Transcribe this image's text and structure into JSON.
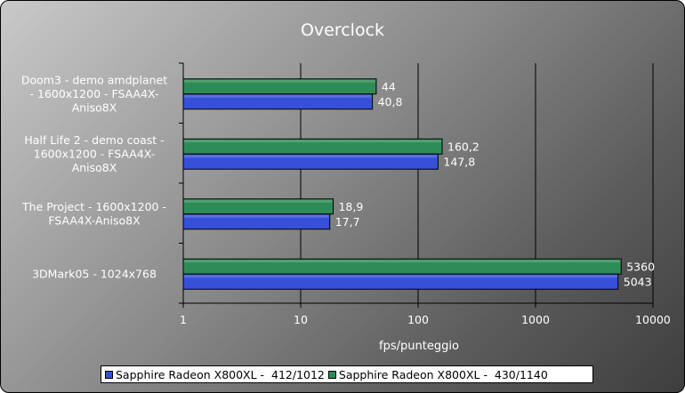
{
  "chart_data": {
    "type": "bar",
    "orientation": "horizontal",
    "title": "Overclock",
    "xlabel": "fps/punteggio",
    "ylabel": "",
    "xscale": "log",
    "xlim": [
      1,
      10000
    ],
    "xticks": [
      "1",
      "10",
      "100",
      "1000",
      "10000"
    ],
    "grid": "vertical",
    "legend_position": "bottom",
    "categories": [
      [
        "Doom3 - demo amdplanet",
        "- 1600x1200 - FSAA4X-",
        "Aniso8X"
      ],
      [
        "Half Life 2 - demo coast -",
        "1600x1200 - FSAA4X-",
        "Aniso8X"
      ],
      [
        "The Project - 1600x1200 -",
        "FSAA4X-Aniso8X"
      ],
      [
        "3DMark05 - 1024x768"
      ]
    ],
    "series": [
      {
        "name": "Sapphire Radeon X800XL -  430/1140",
        "color": "#2e8b57",
        "values": [
          44,
          160.2,
          18.9,
          5360
        ],
        "labels": [
          "44",
          "160,2",
          "18,9",
          "5360"
        ]
      },
      {
        "name": "Sapphire Radeon X800XL -  412/1012",
        "color": "#3650d8",
        "values": [
          40.8,
          147.8,
          17.7,
          5043
        ],
        "labels": [
          "40,8",
          "147,8",
          "17,7",
          "5043"
        ]
      }
    ],
    "legend_order": [
      1,
      0
    ]
  }
}
